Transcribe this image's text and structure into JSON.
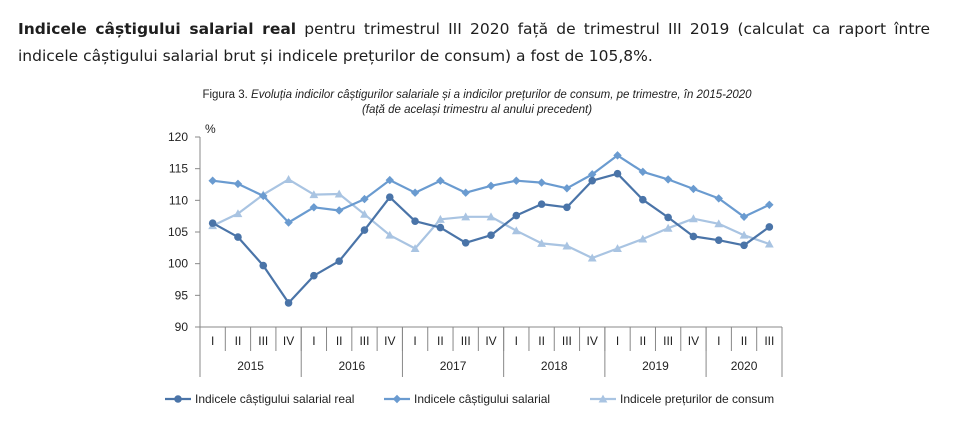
{
  "intro": {
    "bold": "Indicele câștigului salarial real",
    "rest": " pentru trimestrul III 2020 față de trimestrul III 2019 (calculat ca raport între indicele câștigului salarial brut și indicele prețurilor de consum) a fost de 105,8%."
  },
  "chart_data": {
    "type": "line",
    "figure_label": "Figura 3.",
    "title": "Evoluția indicilor câștigurilor salariale și a indicilor prețurilor de consum, pe trimestre, în 2015-2020",
    "subtitle": "(față de același trimestru al anului precedent)",
    "ylabel": "%",
    "ylim": [
      90,
      120
    ],
    "yticks": [
      90,
      95,
      100,
      105,
      110,
      115,
      120
    ],
    "quarters": [
      "I",
      "II",
      "III",
      "IV",
      "I",
      "II",
      "III",
      "IV",
      "I",
      "II",
      "III",
      "IV",
      "I",
      "II",
      "III",
      "IV",
      "I",
      "II",
      "III",
      "IV",
      "I",
      "II",
      "III"
    ],
    "years": [
      "2015",
      "2016",
      "2017",
      "2018",
      "2019",
      "2020"
    ],
    "legend_position": "bottom",
    "series": [
      {
        "name": "Indicele câștigului salarial real",
        "color": "#4a74a8",
        "marker": "circle",
        "values": [
          106.4,
          104.2,
          99.7,
          93.8,
          98.1,
          100.4,
          105.3,
          110.5,
          106.7,
          105.7,
          103.3,
          104.5,
          107.6,
          109.4,
          108.9,
          113.1,
          114.2,
          110.1,
          107.3,
          104.3,
          103.7,
          102.9,
          105.8
        ]
      },
      {
        "name": "Indicele câștigului salarial",
        "color": "#6a9bd0",
        "marker": "diamond",
        "values": [
          113.1,
          112.6,
          110.7,
          106.5,
          108.9,
          108.4,
          110.2,
          113.2,
          111.2,
          113.1,
          111.2,
          112.3,
          113.1,
          112.8,
          111.9,
          114.1,
          117.1,
          114.5,
          113.3,
          111.8,
          110.3,
          107.4,
          109.3
        ]
      },
      {
        "name": "Indicele prețurilor de consum",
        "color": "#a9c4e2",
        "marker": "triangle",
        "values": [
          106.0,
          107.9,
          110.9,
          113.3,
          110.9,
          111.0,
          107.8,
          104.5,
          102.4,
          107.0,
          107.4,
          107.4,
          105.2,
          103.2,
          102.8,
          100.9,
          102.4,
          103.9,
          105.6,
          107.1,
          106.3,
          104.5,
          103.1
        ]
      }
    ]
  }
}
